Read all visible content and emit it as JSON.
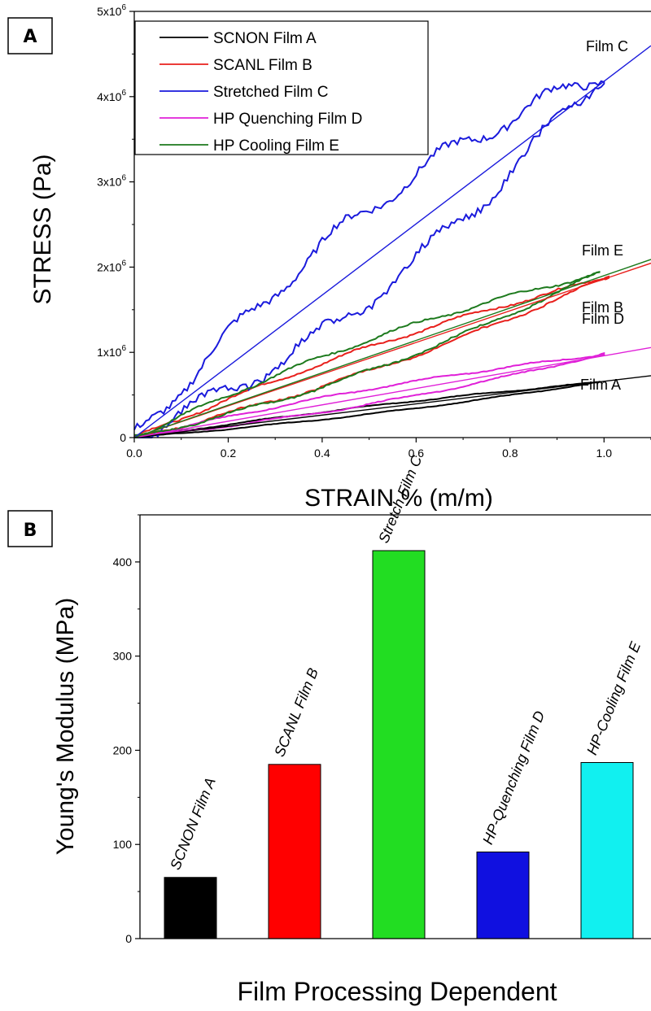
{
  "chart_data": [
    {
      "panel": "A",
      "type": "line",
      "xlabel": "STRAIN % (m/m)",
      "ylabel": "STRESS (Pa)",
      "xlim": [
        0,
        1.1
      ],
      "ylim": [
        0,
        5000000
      ],
      "x_ticks": [
        "0.0",
        "0.2",
        "0.4",
        "0.6",
        "0.8",
        "1.0"
      ],
      "y_ticks": [
        {
          "base": "0",
          "exp": ""
        },
        {
          "base": "1x10",
          "exp": "6"
        },
        {
          "base": "2x10",
          "exp": "6"
        },
        {
          "base": "3x10",
          "exp": "6"
        },
        {
          "base": "4x10",
          "exp": "6"
        },
        {
          "base": "5x10",
          "exp": "6"
        }
      ],
      "legend_position": "top-left",
      "legend": [
        {
          "label": "SCNON Film A",
          "color": "#000000"
        },
        {
          "label": "SCANL  Film B",
          "color": "#e8201c"
        },
        {
          "label": "Stretched Film C",
          "color": "#1a1adc"
        },
        {
          "label": "HP Quenching Film D",
          "color": "#e020d8"
        },
        {
          "label": "HP Cooling      Film E",
          "color": "#1d7a1d"
        }
      ],
      "series": [
        {
          "label": "Film A",
          "color": "#000000",
          "max_strain": 0.99,
          "peak_stress": 650000,
          "upper_bulge": 0.06,
          "lower_bulge": -0.08,
          "wiggle": 0.01,
          "fit_slope": 660000
        },
        {
          "label": "Film B",
          "color": "#e8201c",
          "max_strain": 1.01,
          "peak_stress": 1880000,
          "upper_bulge": 0.07,
          "lower_bulge": -0.08,
          "wiggle": 0.012,
          "fit_slope": 1860000
        },
        {
          "label": "Film C",
          "color": "#1a1adc",
          "max_strain": 1.0,
          "peak_stress": 4280000,
          "upper_bulge": 0.13,
          "lower_bulge": -0.12,
          "wiggle": 0.025,
          "fit_slope": 4180000
        },
        {
          "label": "Film D",
          "color": "#e020d8",
          "max_strain": 1.0,
          "peak_stress": 980000,
          "upper_bulge": 0.08,
          "lower_bulge": -0.1,
          "wiggle": 0.012,
          "fit_slope": 960000
        },
        {
          "label": "Film E",
          "color": "#1d7a1d",
          "max_strain": 0.99,
          "peak_stress": 1930000,
          "upper_bulge": 0.09,
          "lower_bulge": -0.1,
          "wiggle": 0.012,
          "fit_slope": 1900000
        }
      ]
    },
    {
      "panel": "B",
      "type": "bar",
      "xlabel": "Film Processing Dependent",
      "ylabel": "Young's Modulus (MPa)",
      "ylim": [
        0,
        450
      ],
      "y_ticks": [
        0,
        100,
        200,
        300,
        400
      ],
      "categories": [
        "SCNON Film A",
        "SCANL Film B",
        "Stretch Film C",
        "HP-Quenching Film D",
        "HP-Cooling Film E"
      ],
      "values": [
        65,
        185,
        412,
        92,
        187
      ],
      "colors": [
        "#000000",
        "#ff0000",
        "#22dd22",
        "#1010e0",
        "#11f0f0"
      ]
    }
  ]
}
